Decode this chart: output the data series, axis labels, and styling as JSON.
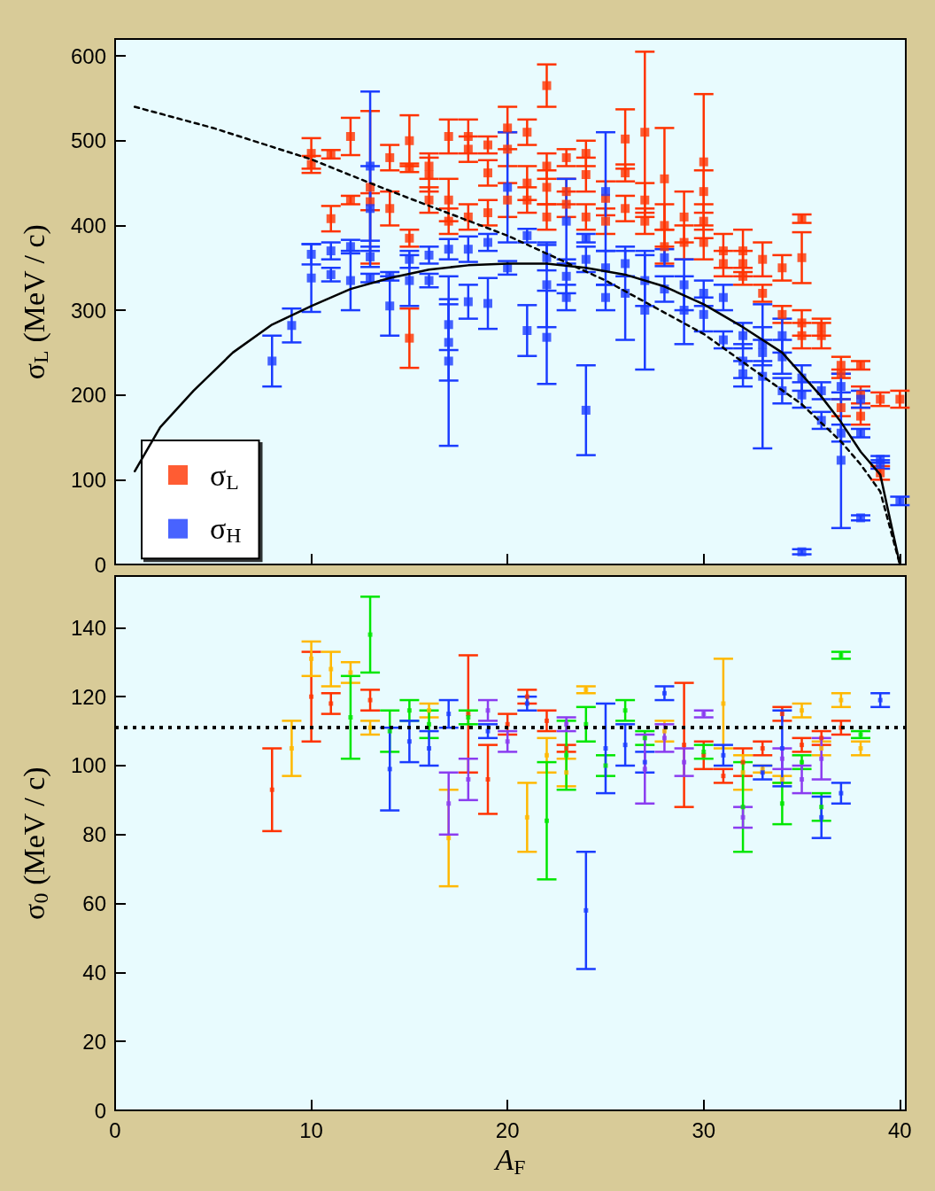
{
  "chart_data": [
    {
      "type": "scatter",
      "ylabel": "σ$_{L}$ (MeV / c)",
      "xlim": [
        0,
        40.3
      ],
      "xticks": [
        0,
        10,
        20,
        30,
        40
      ],
      "ylim": [
        0,
        620
      ],
      "yticks": [
        0,
        100,
        200,
        300,
        400,
        500,
        600
      ],
      "tick_labels": "y",
      "marker": "square",
      "legend": "bottom left",
      "series": [
        {
          "name": "σ$_{L}$",
          "color": "#ff3300",
          "x": [
            10,
            10,
            11,
            11,
            12,
            12,
            13,
            13,
            14,
            14,
            15,
            15,
            15,
            15,
            16,
            16,
            16,
            17,
            17,
            17,
            18,
            18,
            18,
            19,
            19,
            19,
            20,
            20,
            20,
            21,
            21,
            21,
            22,
            22,
            22,
            22,
            23,
            23,
            23,
            24,
            24,
            24,
            25,
            25,
            26,
            26,
            26,
            27,
            27,
            27,
            28,
            28,
            28,
            29,
            29,
            30,
            30,
            30,
            30,
            31,
            31,
            32,
            32,
            32,
            33,
            33,
            34,
            34,
            35,
            35,
            35,
            35,
            36,
            36,
            37,
            37,
            37,
            38,
            38,
            38,
            39,
            39,
            40
          ],
          "values": [
            485,
            472,
            484,
            408,
            505,
            430,
            445,
            428,
            480,
            420,
            500,
            468,
            385,
            267,
            470,
            460,
            430,
            505,
            430,
            405,
            505,
            490,
            410,
            495,
            462,
            415,
            515,
            490,
            430,
            510,
            450,
            430,
            565,
            470,
            445,
            410,
            480,
            440,
            425,
            485,
            460,
            410,
            432,
            405,
            502,
            462,
            420,
            510,
            430,
            405,
            455,
            400,
            375,
            410,
            380,
            475,
            440,
            405,
            380,
            370,
            355,
            370,
            355,
            340,
            360,
            320,
            350,
            295,
            408,
            362,
            285,
            270,
            280,
            270,
            235,
            225,
            185,
            235,
            200,
            175,
            195,
            108,
            195
          ],
          "errors": [
            18,
            10,
            5,
            15,
            22,
            5,
            90,
            10,
            15,
            20,
            30,
            5,
            10,
            35,
            15,
            20,
            15,
            20,
            25,
            15,
            20,
            15,
            15,
            10,
            15,
            15,
            25,
            20,
            20,
            15,
            20,
            15,
            25,
            15,
            20,
            15,
            10,
            15,
            15,
            15,
            20,
            15,
            20,
            15,
            35,
            10,
            15,
            95,
            20,
            15,
            60,
            25,
            20,
            30,
            20,
            80,
            25,
            20,
            20,
            20,
            15,
            25,
            15,
            10,
            20,
            10,
            15,
            10,
            5,
            30,
            15,
            15,
            10,
            15,
            10,
            5,
            10,
            5,
            10,
            10,
            8,
            8,
            10
          ]
        },
        {
          "name": "σ$_{H}$",
          "color": "#1a3cff",
          "x": [
            8,
            9,
            10,
            10,
            11,
            11,
            12,
            12,
            13,
            13,
            13,
            13,
            14,
            14,
            15,
            15,
            16,
            16,
            17,
            17,
            17,
            17,
            18,
            18,
            19,
            19,
            20,
            20,
            21,
            21,
            22,
            22,
            22,
            23,
            23,
            23,
            24,
            24,
            24,
            25,
            25,
            25,
            26,
            26,
            27,
            27,
            28,
            28,
            29,
            29,
            30,
            30,
            31,
            31,
            32,
            32,
            32,
            33,
            33,
            33,
            34,
            34,
            34,
            35,
            35,
            35,
            36,
            36,
            37,
            37,
            37,
            38,
            38,
            38,
            39,
            39,
            40
          ],
          "values": [
            240,
            282,
            366,
            338,
            370,
            342,
            375,
            335,
            470,
            420,
            363,
            338,
            340,
            305,
            360,
            335,
            365,
            335,
            372,
            283,
            262,
            240,
            372,
            310,
            380,
            308,
            445,
            350,
            388,
            276,
            362,
            330,
            268,
            405,
            340,
            315,
            385,
            360,
            182,
            440,
            350,
            315,
            355,
            320,
            335,
            300,
            362,
            325,
            330,
            300,
            320,
            295,
            315,
            265,
            270,
            240,
            225,
            260,
            250,
            222,
            270,
            245,
            205,
            220,
            200,
            15,
            205,
            170,
            210,
            155,
            123,
            195,
            155,
            55,
            124,
            118,
            75
          ],
          "errors": [
            30,
            20,
            12,
            40,
            10,
            8,
            8,
            35,
            88,
            50,
            12,
            5,
            5,
            35,
            10,
            30,
            10,
            8,
            12,
            30,
            45,
            100,
            15,
            20,
            10,
            30,
            65,
            8,
            8,
            30,
            15,
            50,
            55,
            50,
            20,
            15,
            5,
            15,
            53,
            70,
            20,
            15,
            15,
            55,
            30,
            70,
            10,
            15,
            30,
            40,
            15,
            20,
            15,
            10,
            15,
            20,
            15,
            20,
            15,
            85,
            20,
            20,
            15,
            15,
            15,
            3,
            10,
            10,
            15,
            10,
            80,
            10,
            5,
            3,
            4,
            5,
            5
          ]
        },
        {
          "type": "line",
          "color": "#000000",
          "line_style": "solid",
          "marker": "none",
          "x": [
            1,
            2.3,
            4,
            6,
            8,
            10,
            12,
            14,
            16,
            18,
            20,
            22,
            24,
            26,
            28,
            30,
            32,
            34,
            36,
            37,
            38,
            39,
            40
          ],
          "values": [
            110,
            162,
            205,
            250,
            283,
            305,
            325,
            338,
            348,
            353,
            355,
            355,
            350,
            342,
            328,
            307,
            280,
            250,
            198,
            168,
            133,
            106,
            0
          ]
        },
        {
          "type": "line",
          "color": "#000000",
          "line_style": "dashed",
          "marker": "none",
          "x": [
            1,
            5,
            10,
            13,
            15,
            20,
            25,
            30,
            35,
            37,
            38,
            39,
            40
          ],
          "values": [
            540,
            515,
            478,
            450,
            432,
            388,
            335,
            272,
            189,
            145,
            118,
            86,
            0
          ]
        }
      ]
    },
    {
      "type": "scatter",
      "xlabel": "A$_{F}$",
      "ylabel": "σ$_{0}$ (MeV / c)",
      "xlim": [
        0,
        40.3
      ],
      "xticks": [
        0,
        10,
        20,
        30,
        40
      ],
      "ylim": [
        0,
        155
      ],
      "yticks": [
        0,
        20,
        40,
        60,
        80,
        100,
        120,
        140
      ],
      "marker": "square",
      "ref_lines": [
        {
          "axis": "y",
          "value": 111,
          "color": "#000000",
          "line_style": "dotted"
        }
      ],
      "series": [
        {
          "color": "#ff3300",
          "x": [
            8,
            10,
            11,
            13,
            18,
            19,
            20,
            21,
            22,
            23,
            29,
            30,
            31,
            32,
            33,
            34,
            35,
            36,
            37
          ],
          "values": [
            93,
            120,
            118,
            119,
            115,
            96,
            112,
            120,
            113,
            105,
            106,
            103,
            97,
            101,
            105,
            115,
            106,
            108,
            111
          ],
          "errors": [
            12,
            13,
            3,
            3,
            17,
            10,
            3,
            2,
            3,
            1,
            18,
            4,
            2,
            4,
            2,
            2,
            2,
            2,
            2
          ]
        },
        {
          "color": "#ffb800",
          "x": [
            9,
            10,
            11,
            12,
            13,
            16,
            17,
            21,
            22,
            23,
            24,
            28,
            31,
            32,
            33,
            34,
            35,
            36,
            37,
            38
          ],
          "values": [
            105,
            131,
            128,
            127,
            111,
            116,
            79,
            85,
            103,
            98,
            122,
            110,
            118,
            98,
            99,
            96,
            116,
            105,
            119,
            105
          ],
          "errors": [
            8,
            5,
            5,
            3,
            2,
            2,
            14,
            10,
            5,
            4,
            1,
            3,
            13,
            5,
            1,
            1,
            2,
            2,
            2,
            2
          ]
        },
        {
          "color": "#00e600",
          "x": [
            12,
            13,
            14,
            15,
            16,
            18,
            22,
            23,
            24,
            25,
            26,
            27,
            30,
            32,
            34,
            35,
            36,
            37,
            38
          ],
          "values": [
            114,
            138,
            110,
            116,
            112,
            114,
            84,
            103,
            112,
            100,
            116,
            108,
            104,
            88,
            89,
            101,
            88,
            132,
            109
          ],
          "errors": [
            12,
            11,
            6,
            3,
            4,
            2,
            17,
            10,
            5,
            3,
            3,
            2,
            2,
            13,
            6,
            2,
            4,
            1,
            1
          ]
        },
        {
          "color": "#1a3cff",
          "x": [
            14,
            15,
            16,
            17,
            19,
            21,
            24,
            25,
            26,
            27,
            28,
            31,
            33,
            34,
            36,
            37,
            39
          ],
          "values": [
            99,
            107,
            105,
            115,
            110,
            118,
            58,
            105,
            106,
            101,
            121,
            103,
            98,
            105,
            85,
            92,
            119
          ],
          "errors": [
            12,
            6,
            5,
            4,
            2,
            2,
            17,
            13,
            6,
            3,
            2,
            3,
            2,
            11,
            6,
            3,
            2
          ]
        },
        {
          "color": "#8a3cf0",
          "x": [
            17,
            18,
            19,
            20,
            23,
            27,
            28,
            29,
            30,
            32,
            34,
            35,
            36
          ],
          "values": [
            89,
            96,
            116,
            107,
            112,
            99,
            108,
            101,
            115,
            85,
            102,
            96,
            102
          ],
          "errors": [
            9,
            6,
            3,
            3,
            2,
            10,
            4,
            4,
            1,
            3,
            3,
            4,
            6
          ]
        }
      ]
    }
  ]
}
